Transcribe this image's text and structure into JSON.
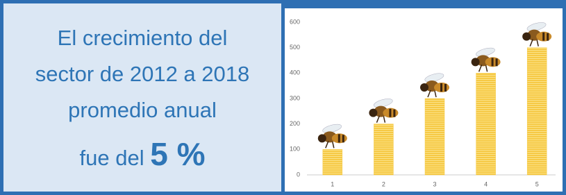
{
  "text": {
    "lines": [
      "El crecimiento del",
      "sector de 2012 a 2018",
      "promedio anual",
      "fue del"
    ],
    "highlight": "5 %"
  },
  "chart_data": {
    "type": "bar",
    "categories": [
      "1",
      "2",
      "3",
      "4",
      "5"
    ],
    "values": [
      100,
      200,
      300,
      400,
      500
    ],
    "color": "#f6c945",
    "ylim": [
      0,
      600
    ],
    "yticks": [
      0,
      100,
      200,
      300,
      400,
      500,
      600
    ],
    "grid": false
  }
}
